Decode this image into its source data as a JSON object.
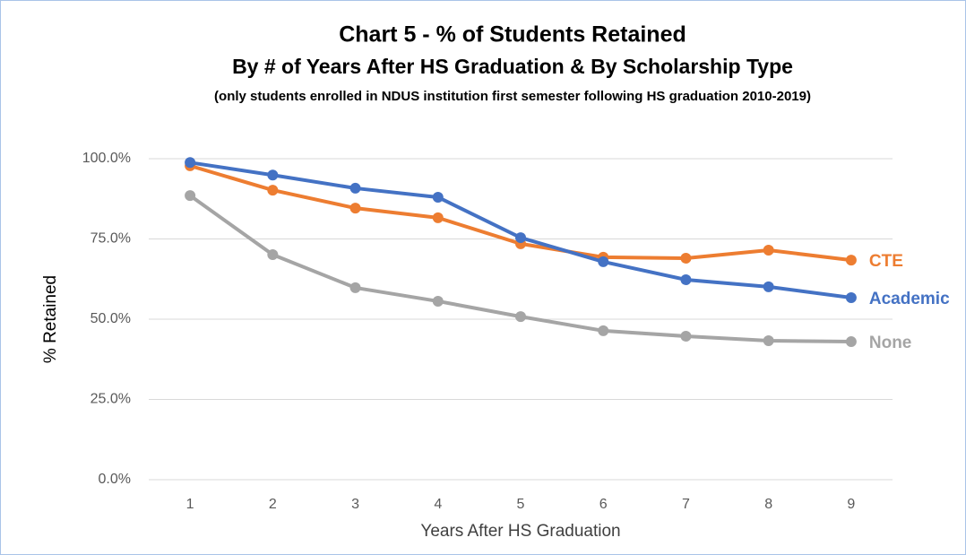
{
  "chart_data": {
    "type": "line",
    "title": "Chart 5 -   % of Students Retained",
    "subtitle": "By # of Years After HS Graduation & By Scholarship Type",
    "note": "(only students enrolled in NDUS institution first semester following HS graduation 2010-2019)",
    "x_label": "Years After HS Graduation",
    "y_label": "% Retained",
    "categories": [
      "1",
      "2",
      "3",
      "4",
      "5",
      "6",
      "7",
      "8",
      "9"
    ],
    "series": [
      {
        "name": "None",
        "color": "#a5a5a5",
        "values": [
          88.5,
          70.1,
          59.8,
          55.6,
          50.8,
          46.4,
          44.7,
          43.3,
          43.0
        ]
      },
      {
        "name": "CTE",
        "color": "#ed7d31",
        "values": [
          97.8,
          90.2,
          84.6,
          81.6,
          73.5,
          69.3,
          69.0,
          71.5,
          68.4
        ]
      },
      {
        "name": "Academic",
        "color": "#4472c4",
        "values": [
          98.8,
          94.9,
          90.8,
          88.0,
          75.4,
          67.9,
          62.3,
          60.1,
          56.7
        ]
      }
    ],
    "ylim": [
      0,
      100
    ],
    "yticks": [
      {
        "value": 0,
        "label": "0.0%"
      },
      {
        "value": 25,
        "label": "25.0%"
      },
      {
        "value": 50,
        "label": "50.0%"
      },
      {
        "value": 75,
        "label": "75.0%"
      },
      {
        "value": 100,
        "label": "100.0%"
      }
    ],
    "grid": true
  }
}
